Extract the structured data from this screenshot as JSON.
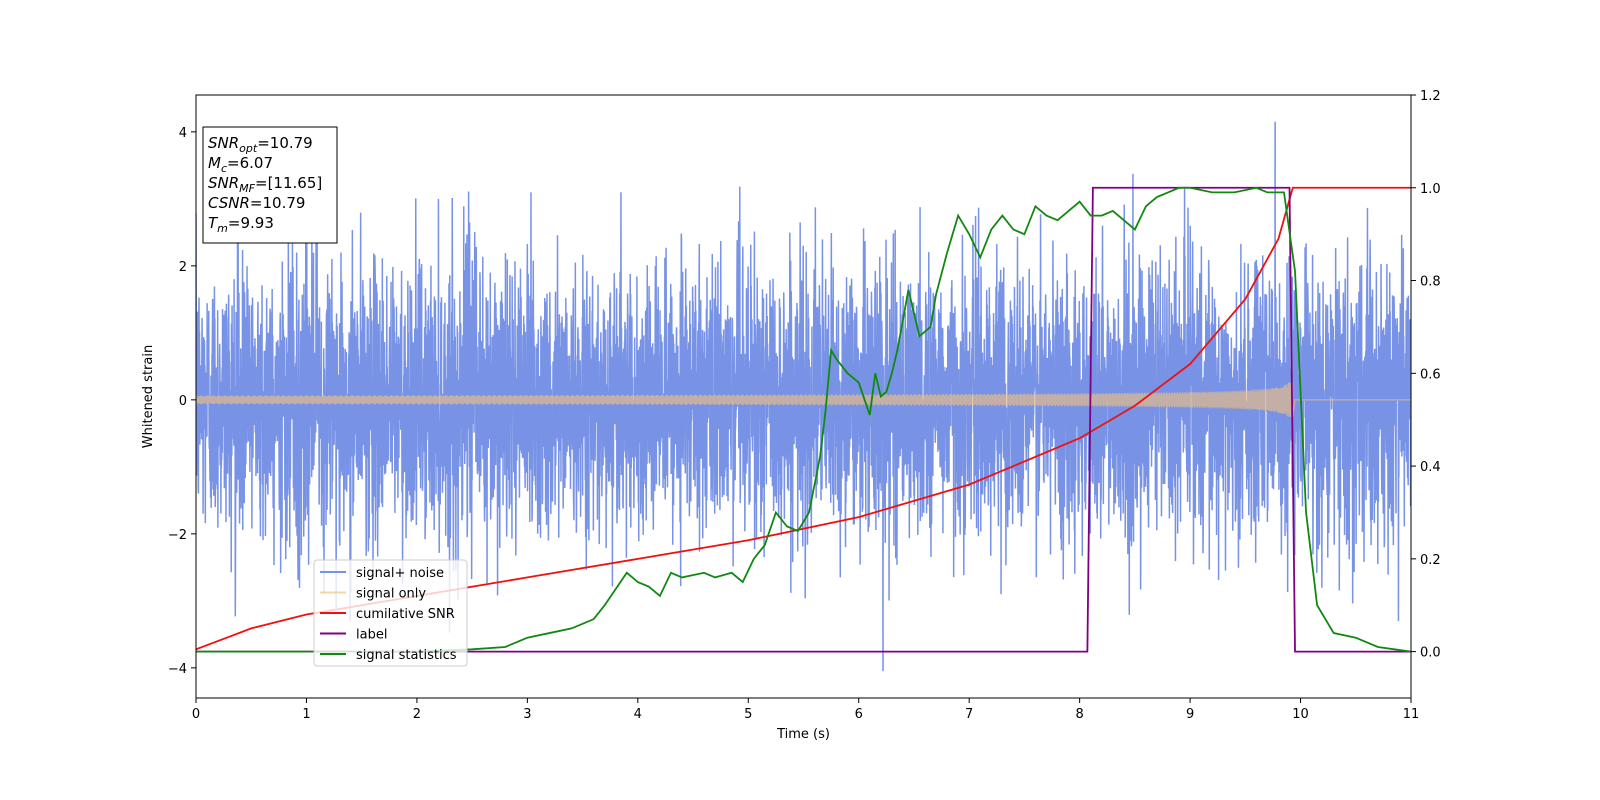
{
  "chart_data": {
    "type": "line",
    "title": "",
    "xlabel": "Time (s)",
    "ylabel": "Whitened strain",
    "xlim": [
      0,
      11
    ],
    "ylim_left": [
      -4.45,
      4.55
    ],
    "ylim_right": [
      -0.1,
      1.2
    ],
    "x_ticks": [
      "0",
      "1",
      "2",
      "3",
      "4",
      "5",
      "6",
      "7",
      "8",
      "9",
      "10",
      "11"
    ],
    "y_left_ticks": [
      "−4",
      "−2",
      "0",
      "2",
      "4"
    ],
    "y_right_ticks": [
      "0.0",
      "0.2",
      "0.4",
      "0.6",
      "0.8",
      "1.0",
      "1.2"
    ],
    "grid": false,
    "legend_position": "lower-left",
    "annotation": {
      "lines": [
        {
          "base": "SNR",
          "sub": "opt",
          "value": "=10.79"
        },
        {
          "base": "M",
          "sub": "c",
          "value": "=6.07"
        },
        {
          "base": "SNR",
          "sub": "MF",
          "value": "=[11.65]"
        },
        {
          "base": "CSNR",
          "sub": "",
          "value": "=10.79"
        },
        {
          "base": "T",
          "sub": "m",
          "value": "=9.93"
        }
      ]
    },
    "series": [
      {
        "name": "signal+ noise",
        "axis": "left",
        "color": "#7893e6",
        "kind": "noise",
        "x_range": [
          0,
          11
        ],
        "sigma": 1.0,
        "peak_max": 4.15,
        "peak_max_x": 9.77,
        "peak_min": -4.05,
        "peak_min_x": 6.22
      },
      {
        "name": "signal only",
        "axis": "left",
        "color": "#f5c27a",
        "kind": "chirp",
        "x_range": [
          0,
          9.93
        ],
        "envelope_start": 0.05,
        "envelope_peak": 0.65,
        "merger_time": 9.93
      },
      {
        "name": "cumilative SNR",
        "axis": "right",
        "color": "#ee1111",
        "x": [
          0,
          0.5,
          1,
          2,
          3,
          4,
          5,
          6,
          7,
          8,
          8.5,
          9,
          9.5,
          9.8,
          9.93,
          10,
          11
        ],
        "y": [
          0.005,
          0.05,
          0.08,
          0.12,
          0.16,
          0.2,
          0.24,
          0.29,
          0.36,
          0.46,
          0.53,
          0.62,
          0.76,
          0.89,
          1.0,
          1.0,
          1.0
        ]
      },
      {
        "name": "label",
        "axis": "right",
        "color": "#800080",
        "x": [
          0,
          8.07,
          8.12,
          9.9,
          9.95,
          11
        ],
        "y": [
          0,
          0,
          1,
          1,
          0,
          0
        ]
      },
      {
        "name": "signal statistics",
        "axis": "right",
        "color": "#118811",
        "x": [
          0,
          1,
          2,
          2.5,
          2.8,
          2.9,
          3.0,
          3.2,
          3.4,
          3.6,
          3.7,
          3.9,
          4.0,
          4.1,
          4.2,
          4.3,
          4.4,
          4.6,
          4.7,
          4.85,
          4.95,
          5.05,
          5.15,
          5.25,
          5.35,
          5.45,
          5.55,
          5.65,
          5.7,
          5.75,
          5.8,
          5.9,
          6.0,
          6.1,
          6.15,
          6.2,
          6.25,
          6.3,
          6.35,
          6.45,
          6.55,
          6.65,
          6.7,
          6.8,
          6.9,
          7.0,
          7.1,
          7.2,
          7.3,
          7.4,
          7.5,
          7.6,
          7.7,
          7.8,
          7.9,
          8.0,
          8.1,
          8.2,
          8.3,
          8.4,
          8.5,
          8.6,
          8.7,
          8.8,
          8.9,
          9.0,
          9.2,
          9.4,
          9.6,
          9.7,
          9.85,
          9.95,
          10.05,
          10.15,
          10.3,
          10.5,
          10.7,
          11
        ],
        "y": [
          0.0,
          0.0,
          0.0,
          0.005,
          0.01,
          0.02,
          0.03,
          0.04,
          0.05,
          0.07,
          0.1,
          0.17,
          0.15,
          0.14,
          0.12,
          0.17,
          0.16,
          0.17,
          0.16,
          0.17,
          0.15,
          0.2,
          0.23,
          0.3,
          0.27,
          0.26,
          0.3,
          0.42,
          0.52,
          0.65,
          0.63,
          0.6,
          0.58,
          0.51,
          0.6,
          0.55,
          0.56,
          0.6,
          0.65,
          0.78,
          0.68,
          0.7,
          0.77,
          0.86,
          0.94,
          0.9,
          0.85,
          0.91,
          0.94,
          0.91,
          0.9,
          0.96,
          0.94,
          0.93,
          0.95,
          0.97,
          0.94,
          0.94,
          0.95,
          0.93,
          0.91,
          0.96,
          0.98,
          0.99,
          1.0,
          1.0,
          0.99,
          0.99,
          1.0,
          0.99,
          0.99,
          0.82,
          0.3,
          0.1,
          0.04,
          0.03,
          0.01,
          0.0
        ]
      }
    ]
  }
}
